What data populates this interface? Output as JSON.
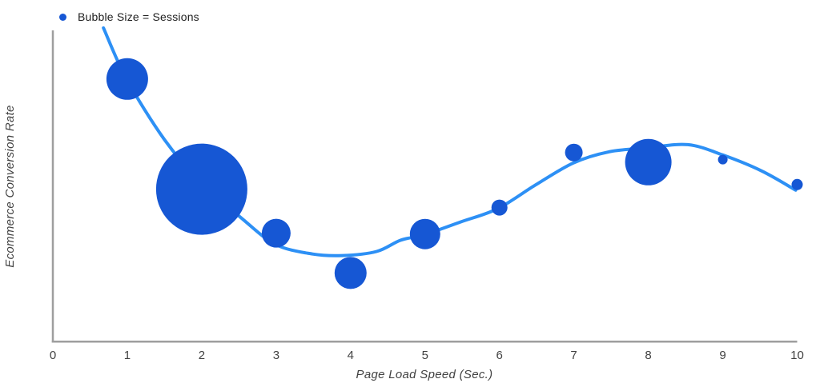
{
  "legend": {
    "label": "Bubble Size = Sessions"
  },
  "axes": {
    "x_title": "Page Load Speed (Sec.)",
    "y_title": "Ecommerce Conversion Rate"
  },
  "colors": {
    "bubble": "#1657d4",
    "trend": "#2d90f5",
    "axis_line": "#9e9e9e",
    "tick_text": "#424242",
    "legend_text": "#212121",
    "background": "#ffffff"
  },
  "chart_data": {
    "type": "scatter",
    "subtype": "bubble",
    "title": "",
    "xlabel": "Page Load Speed (Sec.)",
    "ylabel": "Ecommerce Conversion Rate",
    "legend": [
      "Bubble Size = Sessions"
    ],
    "grid": false,
    "x_range": [
      0,
      10
    ],
    "x_ticks": [
      0,
      1,
      2,
      3,
      4,
      5,
      6,
      7,
      8,
      9,
      10
    ],
    "y_axis_tick_labels_visible": false,
    "y_unit": "percent_of_axis_height",
    "points": [
      {
        "x": 1,
        "y_pct": 84.4,
        "radius_px": 26
      },
      {
        "x": 2,
        "y_pct": 49.0,
        "radius_px": 57
      },
      {
        "x": 3,
        "y_pct": 34.9,
        "radius_px": 18
      },
      {
        "x": 4,
        "y_pct": 22.1,
        "radius_px": 20
      },
      {
        "x": 5,
        "y_pct": 34.6,
        "radius_px": 19
      },
      {
        "x": 6,
        "y_pct": 43.1,
        "radius_px": 10
      },
      {
        "x": 7,
        "y_pct": 60.8,
        "radius_px": 11
      },
      {
        "x": 8,
        "y_pct": 57.7,
        "radius_px": 29
      },
      {
        "x": 9,
        "y_pct": 58.5,
        "radius_px": 6
      },
      {
        "x": 10,
        "y_pct": 50.5,
        "radius_px": 7
      }
    ],
    "trendline": {
      "style": "smooth",
      "stroke_width_px": 4,
      "points": [
        [
          0.68,
          100.8
        ],
        [
          0.99,
          84.4
        ],
        [
          1.5,
          64.9
        ],
        [
          1.98,
          51.3
        ],
        [
          2.52,
          40.0
        ],
        [
          2.99,
          31.3
        ],
        [
          3.49,
          28.2
        ],
        [
          3.89,
          27.7
        ],
        [
          4.35,
          29.0
        ],
        [
          4.67,
          32.6
        ],
        [
          4.99,
          34.4
        ],
        [
          5.48,
          38.5
        ],
        [
          5.98,
          42.8
        ],
        [
          6.48,
          50.3
        ],
        [
          6.99,
          57.4
        ],
        [
          7.47,
          61.0
        ],
        [
          8.0,
          62.3
        ],
        [
          8.53,
          63.3
        ],
        [
          9.0,
          60.0
        ],
        [
          9.52,
          54.9
        ],
        [
          9.98,
          48.7
        ]
      ]
    }
  }
}
